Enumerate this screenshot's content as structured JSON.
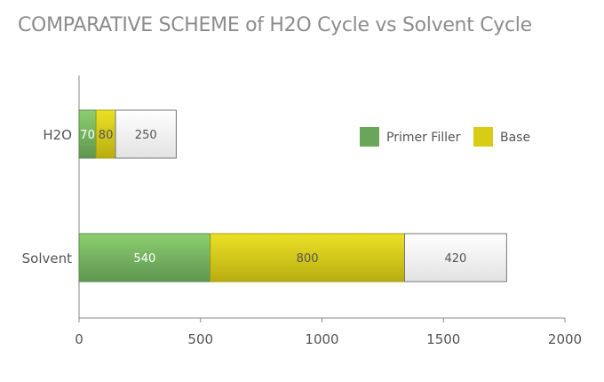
{
  "chart_data": {
    "type": "bar",
    "orientation": "horizontal",
    "stacked": true,
    "title": "COMPARATIVE SCHEME of H2O Cycle vs Solvent Cycle",
    "categories": [
      "H2O",
      "Solvent"
    ],
    "series": [
      {
        "name": "Primer Filler",
        "values": [
          70,
          540
        ],
        "color": "#6aa65a"
      },
      {
        "name": "Base",
        "values": [
          80,
          800
        ],
        "color": "#d9cc14"
      },
      {
        "values": [
          250,
          420
        ],
        "color": "#f0f0f0"
      }
    ],
    "xlim": [
      0,
      2000
    ],
    "xticks": [
      "0",
      "500",
      "1000",
      "1500",
      "2000"
    ],
    "grid": false,
    "legend": "right"
  }
}
